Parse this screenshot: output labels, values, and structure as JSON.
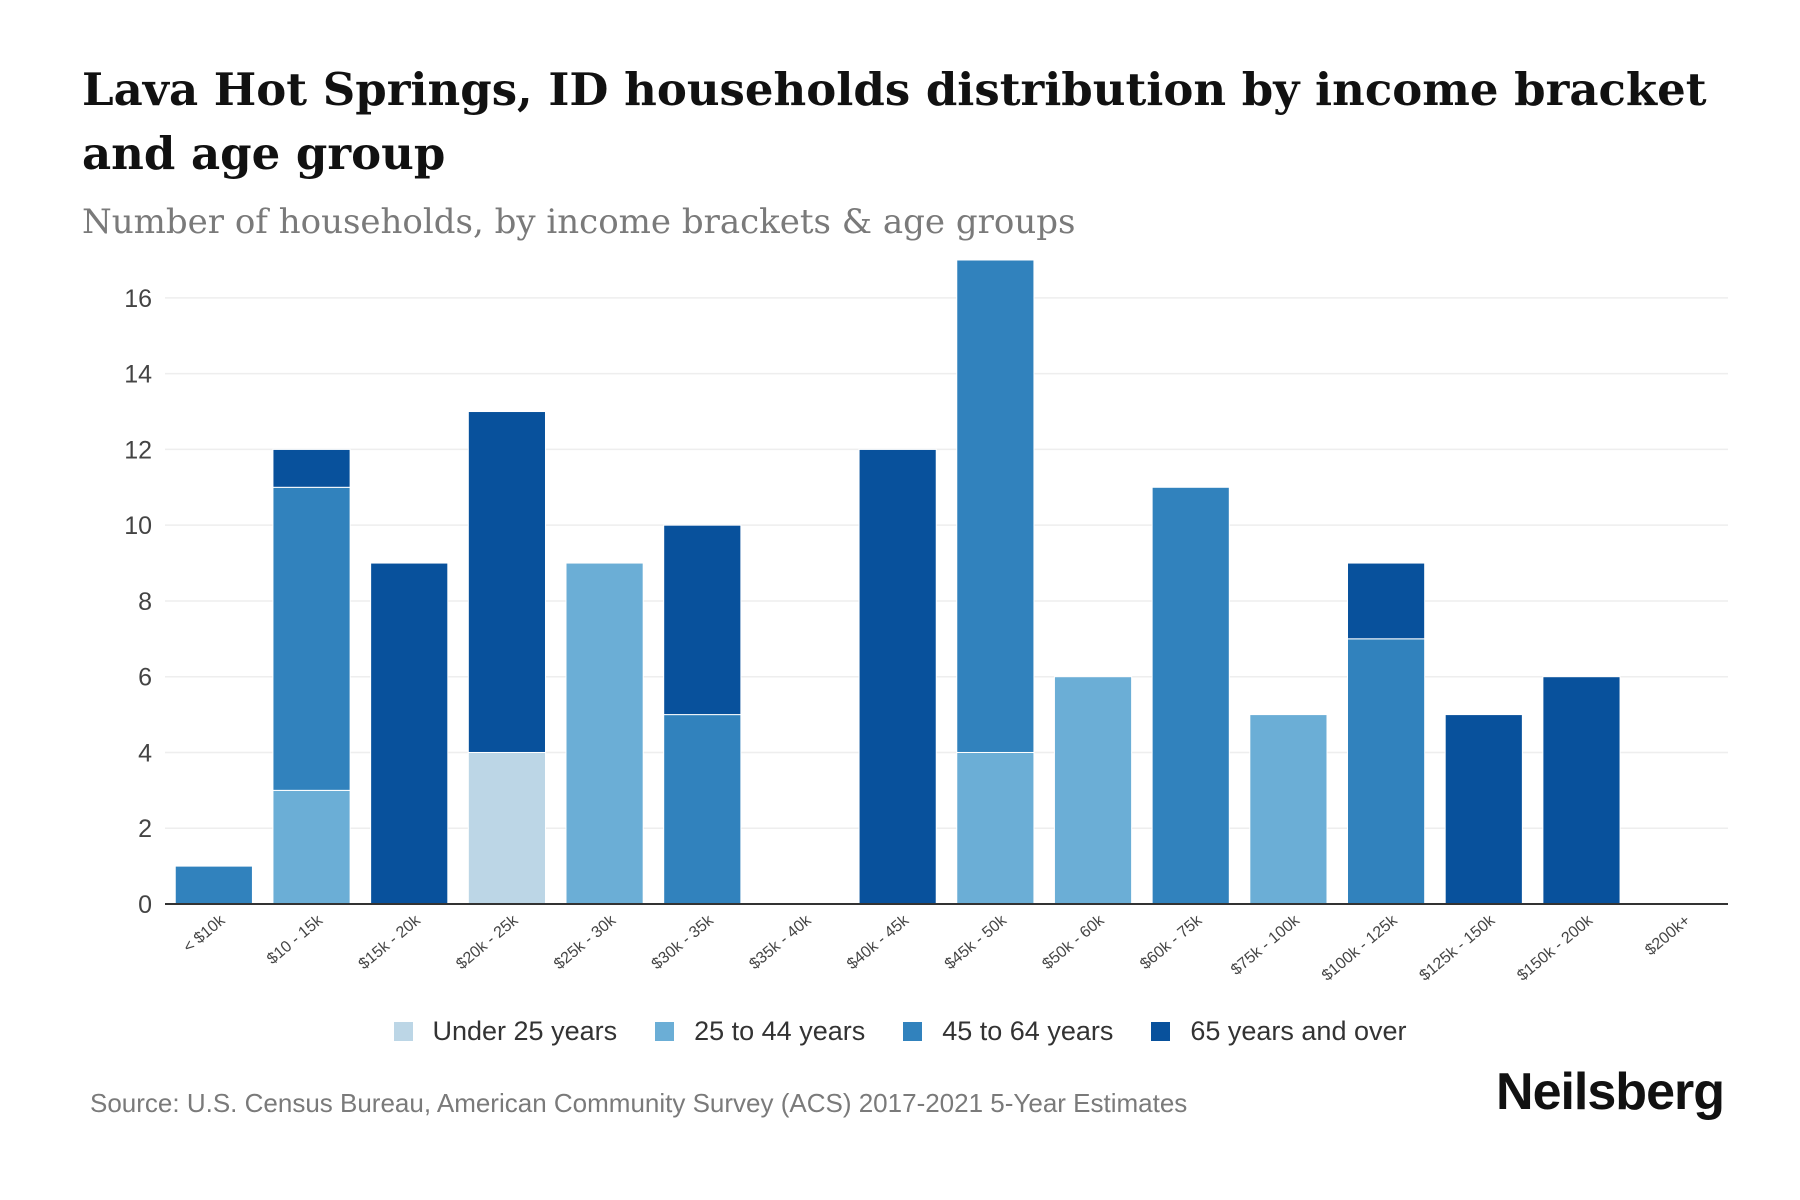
{
  "title": "Lava Hot Springs, ID households distribution by income bracket and age group",
  "subtitle": "Number of households, by income brackets & age groups",
  "source": "Source: U.S. Census Bureau, American Community Survey (ACS) 2017-2021 5-Year Estimates",
  "brand": "Neilsberg",
  "colors": {
    "under_25": "#bcd6e6",
    "age_25_44": "#6baed6",
    "age_45_64": "#3182bd",
    "age_65_over": "#08519c",
    "grid": "#eeeeee",
    "axis": "#333333",
    "tick_text": "#444444"
  },
  "chart_data": {
    "type": "bar",
    "stacked": true,
    "title": "Lava Hot Springs, ID households distribution by income bracket and age group",
    "subtitle": "Number of households, by income brackets & age groups",
    "xlabel": "",
    "ylabel": "",
    "ylim": [
      0,
      17
    ],
    "yticks": [
      0,
      2,
      4,
      6,
      8,
      10,
      12,
      14,
      16
    ],
    "grid": true,
    "legend_position": "bottom-center",
    "categories": [
      "< $10k",
      "$10 - 15k",
      "$15k - 20k",
      "$20k - 25k",
      "$25k - 30k",
      "$30k - 35k",
      "$35k - 40k",
      "$40k - 45k",
      "$45k - 50k",
      "$50k - 60k",
      "$60k - 75k",
      "$75k - 100k",
      "$100k - 125k",
      "$125k - 150k",
      "$150k - 200k",
      "$200k+"
    ],
    "series": [
      {
        "name": "Under 25 years",
        "color_key": "under_25",
        "values": [
          0,
          0,
          0,
          4,
          0,
          0,
          0,
          0,
          0,
          0,
          0,
          0,
          0,
          0,
          0,
          0
        ]
      },
      {
        "name": "25 to 44 years",
        "color_key": "age_25_44",
        "values": [
          0,
          3,
          0,
          0,
          9,
          0,
          0,
          0,
          4,
          6,
          0,
          5,
          0,
          0,
          0,
          0
        ]
      },
      {
        "name": "45 to 64 years",
        "color_key": "age_45_64",
        "values": [
          1,
          8,
          0,
          0,
          0,
          5,
          0,
          0,
          13,
          0,
          11,
          0,
          7,
          0,
          0,
          0
        ]
      },
      {
        "name": "65 years and over",
        "color_key": "age_65_over",
        "values": [
          0,
          1,
          9,
          9,
          0,
          5,
          0,
          12,
          0,
          0,
          0,
          0,
          2,
          5,
          6,
          0
        ]
      }
    ]
  }
}
